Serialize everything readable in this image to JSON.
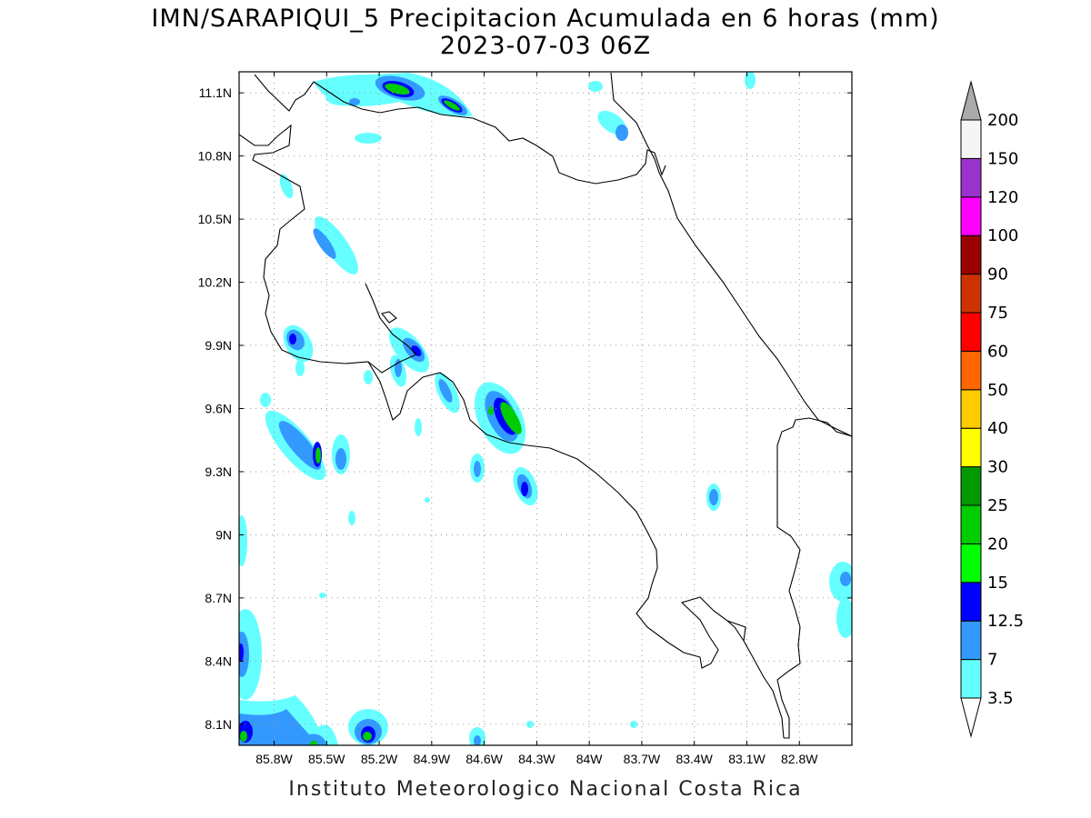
{
  "title": {
    "line1": "IMN/SARAPIQUI_5 Precipitacion Acumulada en 6 horas (mm)",
    "line2": "2023-07-03 06Z"
  },
  "footer": "Instituto Meteorologico Nacional Costa Rica",
  "map": {
    "lon_range": [
      -86.0,
      -82.5
    ],
    "lat_range": [
      8.0,
      11.2
    ],
    "x_ticks": [
      {
        "value": -85.8,
        "label": "85.8W"
      },
      {
        "value": -85.5,
        "label": "85.5W"
      },
      {
        "value": -85.2,
        "label": "85.2W"
      },
      {
        "value": -84.9,
        "label": "84.9W"
      },
      {
        "value": -84.6,
        "label": "84.6W"
      },
      {
        "value": -84.3,
        "label": "84.3W"
      },
      {
        "value": -84.0,
        "label": "84W"
      },
      {
        "value": -83.7,
        "label": "83.7W"
      },
      {
        "value": -83.4,
        "label": "83.4W"
      },
      {
        "value": -83.1,
        "label": "83.1W"
      },
      {
        "value": -82.8,
        "label": "82.8W"
      }
    ],
    "y_ticks": [
      {
        "value": 11.1,
        "label": "11.1N"
      },
      {
        "value": 10.8,
        "label": "10.8N"
      },
      {
        "value": 10.5,
        "label": "10.5N"
      },
      {
        "value": 10.2,
        "label": "10.2N"
      },
      {
        "value": 9.9,
        "label": "9.9N"
      },
      {
        "value": 9.6,
        "label": "9.6N"
      },
      {
        "value": 9.3,
        "label": "9.3N"
      },
      {
        "value": 9.0,
        "label": "9N"
      },
      {
        "value": 8.7,
        "label": "8.7N"
      },
      {
        "value": 8.4,
        "label": "8.4N"
      },
      {
        "value": 8.1,
        "label": "8.1N"
      }
    ],
    "grid": "dotted"
  },
  "legend": {
    "items": [
      {
        "label": "3.5",
        "color": "#66ffff"
      },
      {
        "label": "7",
        "color": "#3399ff"
      },
      {
        "label": "12.5",
        "color": "#0000ff"
      },
      {
        "label": "15",
        "color": "#00ff00"
      },
      {
        "label": "20",
        "color": "#00cc00"
      },
      {
        "label": "25",
        "color": "#009900"
      },
      {
        "label": "30",
        "color": "#ffff00"
      },
      {
        "label": "40",
        "color": "#ffcc00"
      },
      {
        "label": "50",
        "color": "#ff6600"
      },
      {
        "label": "60",
        "color": "#ff0000"
      },
      {
        "label": "75",
        "color": "#cc3300"
      },
      {
        "label": "90",
        "color": "#990000"
      },
      {
        "label": "100",
        "color": "#ff00ff"
      },
      {
        "label": "120",
        "color": "#9933cc"
      },
      {
        "label": "150",
        "color": "#f5f5f5"
      },
      {
        "label": "200",
        "color": "#aaaaaa"
      }
    ]
  }
}
